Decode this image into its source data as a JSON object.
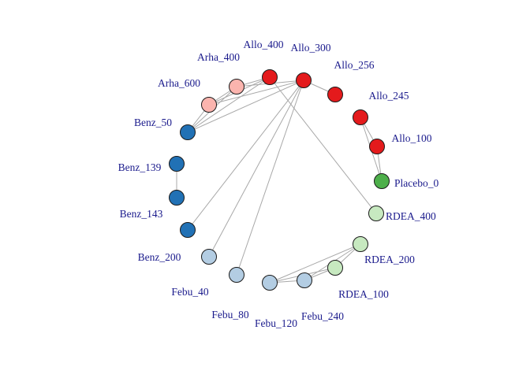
{
  "chart_data": {
    "type": "network",
    "layout": "circle",
    "title": "",
    "nodes": [
      {
        "id": "Allo_400",
        "label": "Allo_400",
        "group": "Allo",
        "color": "#e41a1c"
      },
      {
        "id": "Allo_300",
        "label": "Allo_300",
        "group": "Allo",
        "color": "#e41a1c"
      },
      {
        "id": "Allo_256",
        "label": "Allo_256",
        "group": "Allo",
        "color": "#e41a1c"
      },
      {
        "id": "Allo_245",
        "label": "Allo_245",
        "group": "Allo",
        "color": "#e41a1c"
      },
      {
        "id": "Allo_100",
        "label": "Allo_100",
        "group": "Allo",
        "color": "#e41a1c"
      },
      {
        "id": "Placebo_0",
        "label": "Placebo_0",
        "group": "Placebo",
        "color": "#4daf4a"
      },
      {
        "id": "RDEA_400",
        "label": "RDEA_400",
        "group": "RDEA",
        "color": "#c7e9c0"
      },
      {
        "id": "RDEA_200",
        "label": "RDEA_200",
        "group": "RDEA",
        "color": "#c7e9c0"
      },
      {
        "id": "RDEA_100",
        "label": "RDEA_100",
        "group": "RDEA",
        "color": "#c7e9c0"
      },
      {
        "id": "Febu_240",
        "label": "Febu_240",
        "group": "Febu",
        "color": "#b3cde3"
      },
      {
        "id": "Febu_120",
        "label": "Febu_120",
        "group": "Febu",
        "color": "#b3cde3"
      },
      {
        "id": "Febu_80",
        "label": "Febu_80",
        "group": "Febu",
        "color": "#b3cde3"
      },
      {
        "id": "Febu_40",
        "label": "Febu_40",
        "group": "Febu",
        "color": "#b3cde3"
      },
      {
        "id": "Benz_200",
        "label": "Benz_200",
        "group": "Benz",
        "color": "#2171b5"
      },
      {
        "id": "Benz_143",
        "label": "Benz_143",
        "group": "Benz",
        "color": "#2171b5"
      },
      {
        "id": "Benz_139",
        "label": "Benz_139",
        "group": "Benz",
        "color": "#2171b5"
      },
      {
        "id": "Benz_50",
        "label": "Benz_50",
        "group": "Benz",
        "color": "#2171b5"
      },
      {
        "id": "Arha_600",
        "label": "Arha_600",
        "group": "Arha",
        "color": "#fbb4ae"
      },
      {
        "id": "Arha_400",
        "label": "Arha_400",
        "group": "Arha",
        "color": "#fbb4ae"
      }
    ],
    "edges": [
      {
        "source": "Allo_400",
        "target": "Arha_400"
      },
      {
        "source": "Allo_400",
        "target": "Arha_600"
      },
      {
        "source": "Allo_400",
        "target": "Benz_50"
      },
      {
        "source": "Allo_400",
        "target": "RDEA_400"
      },
      {
        "source": "Allo_300",
        "target": "Arha_400"
      },
      {
        "source": "Allo_300",
        "target": "Arha_600"
      },
      {
        "source": "Allo_300",
        "target": "Benz_50"
      },
      {
        "source": "Allo_300",
        "target": "Allo_256"
      },
      {
        "source": "Allo_300",
        "target": "Benz_200"
      },
      {
        "source": "Allo_300",
        "target": "Febu_40"
      },
      {
        "source": "Allo_300",
        "target": "Febu_80"
      },
      {
        "source": "Arha_400",
        "target": "Arha_600"
      },
      {
        "source": "Arha_400",
        "target": "Benz_50"
      },
      {
        "source": "Arha_600",
        "target": "Benz_50"
      },
      {
        "source": "Allo_245",
        "target": "Allo_100"
      },
      {
        "source": "Allo_245",
        "target": "Placebo_0"
      },
      {
        "source": "Allo_100",
        "target": "Placebo_0"
      },
      {
        "source": "Benz_139",
        "target": "Benz_143"
      },
      {
        "source": "RDEA_200",
        "target": "Febu_120"
      },
      {
        "source": "RDEA_200",
        "target": "Febu_240"
      },
      {
        "source": "RDEA_200",
        "target": "RDEA_100"
      },
      {
        "source": "RDEA_100",
        "target": "Febu_120"
      },
      {
        "source": "RDEA_100",
        "target": "Febu_240"
      },
      {
        "source": "Febu_240",
        "target": "Febu_120"
      }
    ]
  }
}
